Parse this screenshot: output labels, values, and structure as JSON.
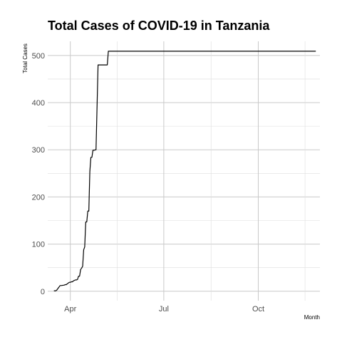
{
  "chart_data": {
    "type": "line",
    "title": "Total Cases of COVID-19 in Tanzania",
    "xlabel": "Month",
    "ylabel": "Total Cases",
    "x_axis": {
      "type": "date",
      "range": [
        "2020-03-10",
        "2020-11-30"
      ],
      "ticks": [
        {
          "date": "2020-04-01",
          "label": "Apr"
        },
        {
          "date": "2020-07-01",
          "label": "Jul"
        },
        {
          "date": "2020-10-01",
          "label": "Oct"
        }
      ]
    },
    "y_axis": {
      "range": [
        -20,
        530
      ],
      "ticks": [
        0,
        100,
        200,
        300,
        400,
        500
      ]
    },
    "grid": true,
    "legend": "none",
    "line_color": "#000000",
    "series": [
      {
        "x": [
          "2020-03-16",
          "2020-03-18",
          "2020-03-19",
          "2020-03-20",
          "2020-03-22",
          "2020-03-23",
          "2020-03-26",
          "2020-03-27",
          "2020-03-28",
          "2020-03-31",
          "2020-04-01",
          "2020-04-02",
          "2020-04-03",
          "2020-04-04",
          "2020-04-06",
          "2020-04-07",
          "2020-04-08",
          "2020-04-09",
          "2020-04-10",
          "2020-04-11",
          "2020-04-12",
          "2020-04-13",
          "2020-04-14",
          "2020-04-15",
          "2020-04-16",
          "2020-04-17",
          "2020-04-18",
          "2020-04-19",
          "2020-04-20",
          "2020-04-21",
          "2020-04-22",
          "2020-04-23",
          "2020-04-24",
          "2020-04-26",
          "2020-04-28",
          "2020-04-29",
          "2020-04-30",
          "2020-05-01",
          "2020-05-03",
          "2020-05-07",
          "2020-05-08",
          "2020-11-26"
        ],
        "y": [
          1,
          1,
          3,
          6,
          12,
          12,
          13,
          14,
          14,
          19,
          19,
          20,
          20,
          22,
          24,
          24,
          25,
          32,
          32,
          46,
          49,
          53,
          88,
          94,
          147,
          147,
          170,
          170,
          254,
          284,
          284,
          299,
          299,
          300,
          480,
          480,
          480,
          480,
          480,
          480,
          509,
          509
        ]
      }
    ]
  }
}
